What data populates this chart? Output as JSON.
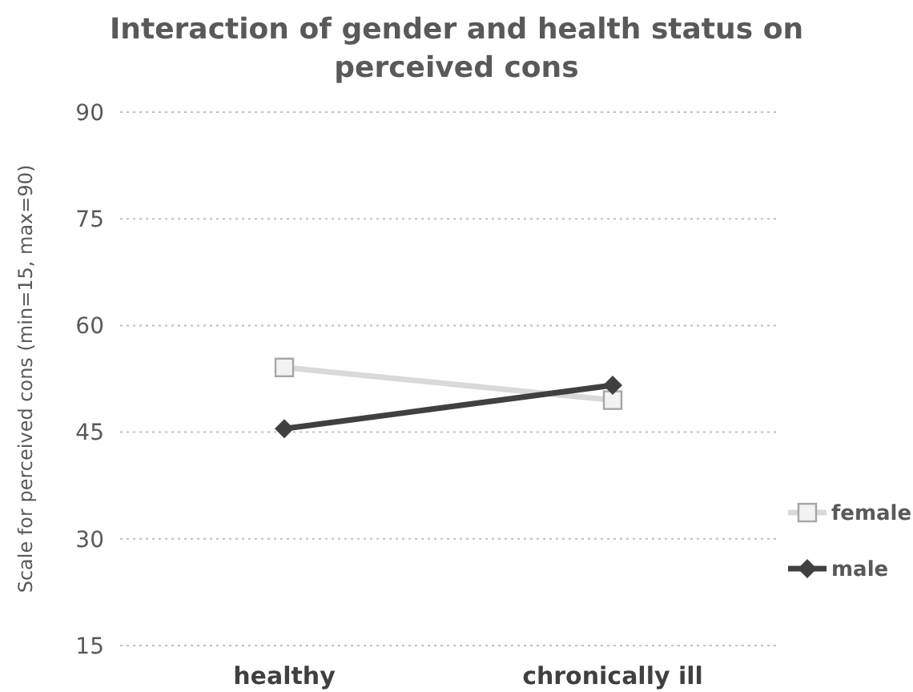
{
  "chart_data": {
    "type": "line",
    "title": "Interaction of gender and health status on perceived cons",
    "ylabel": "Scale for perceived cons  (min=15, max=90)",
    "categories": [
      "healthy",
      "chronically ill"
    ],
    "series": [
      {
        "name": "female",
        "color": "#d9d9d9",
        "values": [
          54.1,
          49.5
        ],
        "marker": "square"
      },
      {
        "name": "male",
        "color": "#404040",
        "values": [
          45.5,
          51.6
        ],
        "marker": "diamond"
      }
    ],
    "ylim": [
      15,
      90
    ],
    "yticks": [
      15,
      30,
      45,
      60,
      75,
      90
    ],
    "grid": "y",
    "legend": "right",
    "line_style": "solid"
  }
}
